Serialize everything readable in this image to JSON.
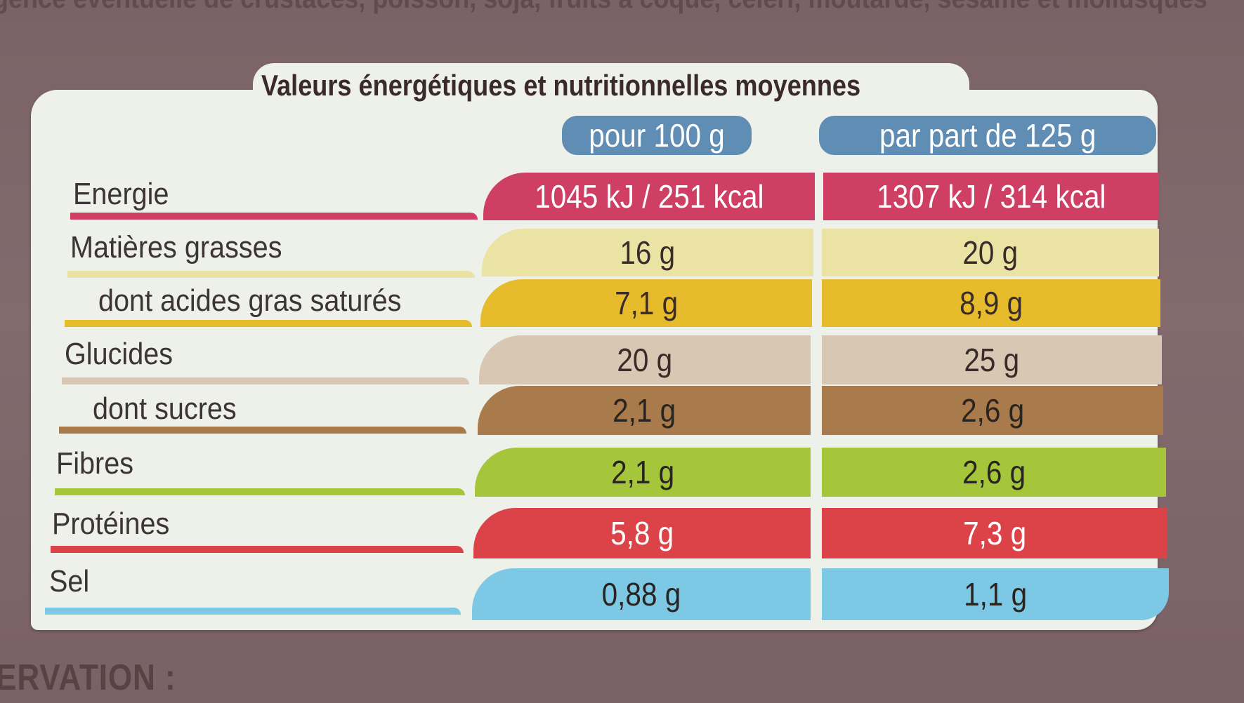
{
  "background": {
    "top_text": "gence éventuelle de crustacés, poisson, soja, fruits à coque, céleri, moutarde, sésame et mollusques",
    "bottom_text": "ERVATION :"
  },
  "table": {
    "title": "Valeurs énergétiques et nutritionnelles moyennes",
    "columns": [
      "pour 100 g",
      "par part de 125 g"
    ],
    "rows": [
      {
        "label": "Energie",
        "per100": "1045 kJ / 251 kcal",
        "perPortion": "1307 kJ / 314 kcal",
        "color": "#cf3f64"
      },
      {
        "label": "Matières grasses",
        "per100": "16 g",
        "perPortion": "20 g",
        "color": "#ebe3a4"
      },
      {
        "label": "dont acides gras saturés",
        "per100": "7,1 g",
        "perPortion": "8,9 g",
        "color": "#e6bb2c"
      },
      {
        "label": "Glucides",
        "per100": "20 g",
        "perPortion": "25 g",
        "color": "#d8c7b2"
      },
      {
        "label": "dont sucres",
        "per100": "2,1 g",
        "perPortion": "2,6 g",
        "color": "#a87a4c"
      },
      {
        "label": "Fibres",
        "per100": "2,1 g",
        "perPortion": "2,6 g",
        "color": "#a5c63a"
      },
      {
        "label": "Protéines",
        "per100": "5,8 g",
        "perPortion": "7,3 g",
        "color": "#dc4349"
      },
      {
        "label": "Sel",
        "per100": "0,88 g",
        "perPortion": "1,1 g",
        "color": "#7cc8e5"
      }
    ]
  }
}
